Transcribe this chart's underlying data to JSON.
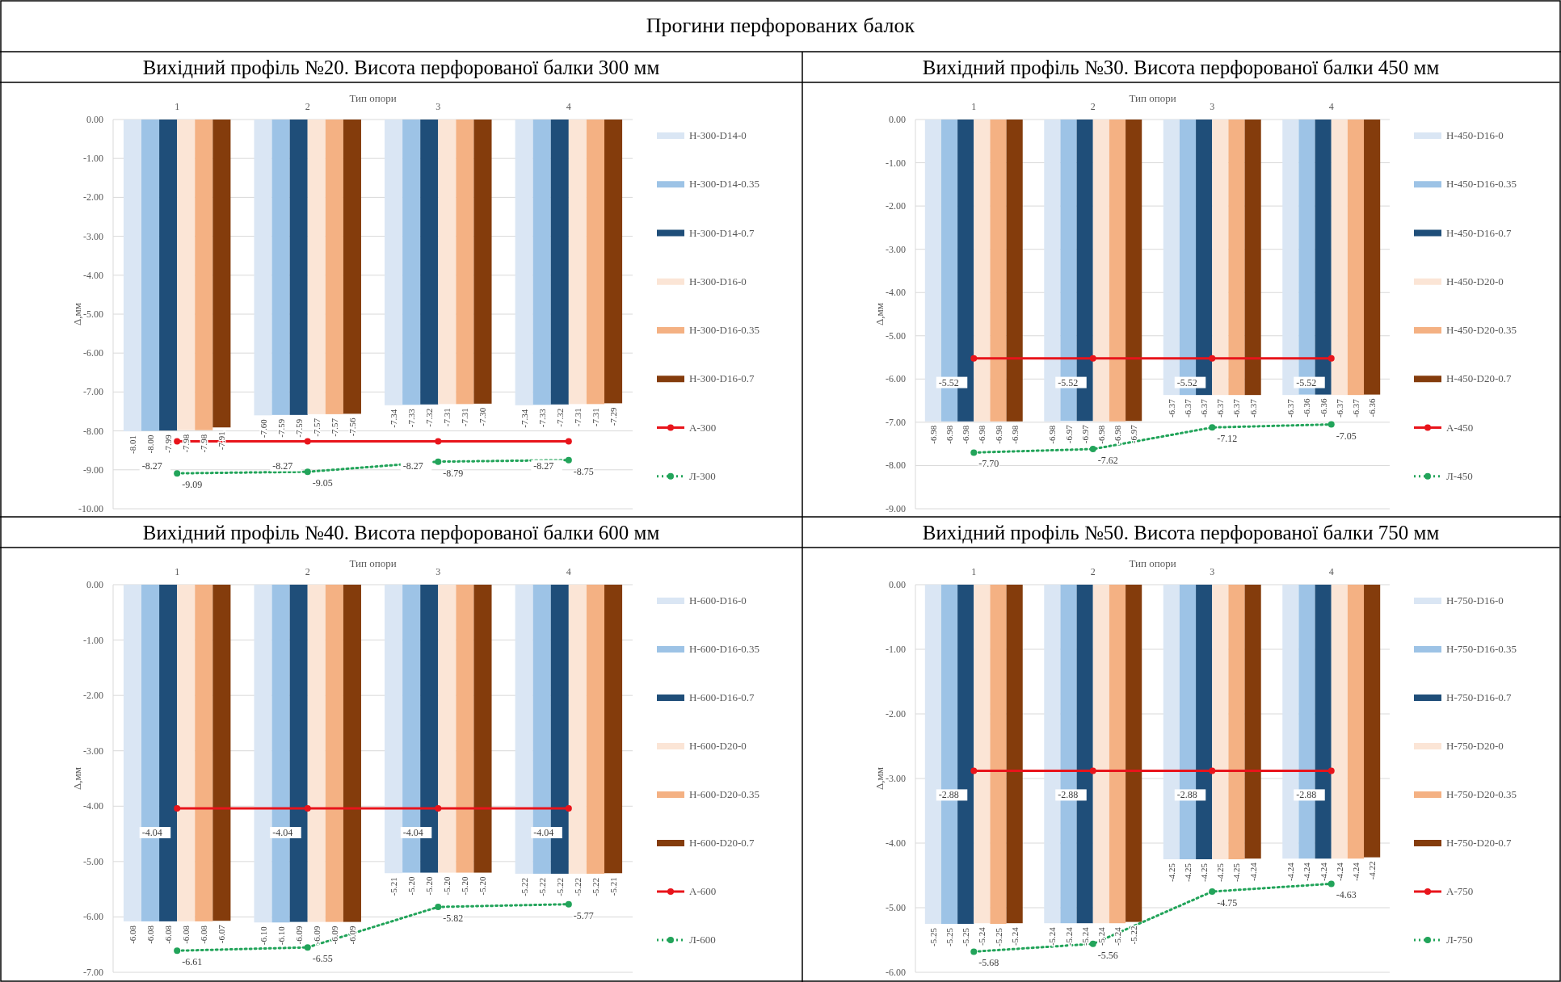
{
  "chart_data": [
    {
      "type": "bar",
      "title": "Вихідний профіль №20. Висота перфорованої балки 300 мм",
      "annotations": [
        "Прогини перфорованих балок"
      ],
      "xlabel": "Тип опори",
      "ylabel": "Δ,мм",
      "categories": [
        "1",
        "2",
        "3",
        "4"
      ],
      "ylim": [
        -10,
        0
      ],
      "yticks": [
        {
          "value": 0,
          "label": "0.00"
        },
        {
          "value": -1,
          "label": "-1.00"
        },
        {
          "value": -2,
          "label": "-2.00"
        },
        {
          "value": -3,
          "label": "-3.00"
        },
        {
          "value": -4,
          "label": "-4.00"
        },
        {
          "value": -5,
          "label": "-5.00"
        },
        {
          "value": -6,
          "label": "-6.00"
        },
        {
          "value": -7,
          "label": "-7.00"
        },
        {
          "value": -8,
          "label": "-8.00"
        },
        {
          "value": -9,
          "label": "-9.00"
        },
        {
          "value": -10,
          "label": "-10.00"
        }
      ],
      "grid": "y",
      "legend": "right",
      "series": [
        {
          "name": "Н-300-D14-0",
          "color": "#dae6f4",
          "values": [
            -8.01,
            -7.6,
            -7.34,
            -7.34
          ],
          "value_labels": [
            "-8.01",
            "-7.60",
            "-7.34",
            "-7.34"
          ]
        },
        {
          "name": "Н-300-D14-0.35",
          "color": "#9dc3e6",
          "values": [
            -8.0,
            -7.59,
            -7.33,
            -7.33
          ],
          "value_labels": [
            "-8.00",
            "-7.59",
            "-7.33",
            "-7.33"
          ]
        },
        {
          "name": "Н-300-D14-0.7",
          "color": "#1f4e79",
          "values": [
            -7.99,
            -7.59,
            -7.32,
            -7.32
          ],
          "value_labels": [
            "-7.99",
            "-7.59",
            "-7.32",
            "-7.32"
          ]
        },
        {
          "name": "Н-300-D16-0",
          "color": "#fbe5d6",
          "values": [
            -7.98,
            -7.57,
            -7.31,
            -7.31
          ],
          "value_labels": [
            "-7.98",
            "-7.57",
            "-7.31",
            "-7.31"
          ]
        },
        {
          "name": "Н-300-D16-0.35",
          "color": "#f4b183",
          "values": [
            -7.98,
            -7.57,
            -7.31,
            -7.31
          ],
          "value_labels": [
            "-7.98",
            "-7.57",
            "-7.31",
            "-7.31"
          ]
        },
        {
          "name": "Н-300-D16-0.7",
          "color": "#843c0c",
          "values": [
            -7.91,
            -7.56,
            -7.3,
            -7.29
          ],
          "value_labels": [
            "-7.91",
            "-7.56",
            "-7.30",
            "-7.29"
          ]
        },
        {
          "name": "А-300",
          "type": "line",
          "color": "#e8141b",
          "marker": "circle",
          "line_style": "solid",
          "values": [
            -8.27,
            -8.27,
            -8.27,
            -8.27
          ],
          "value_labels": [
            "-8.27",
            "-8.27",
            "-8.27",
            "-8.27"
          ]
        },
        {
          "name": "Л-300",
          "type": "line",
          "color": "#22a45a",
          "marker": "circle",
          "line_style": "dotted",
          "values": [
            -9.09,
            -9.05,
            -8.79,
            -8.75
          ],
          "value_labels": [
            "-9.09",
            "-9.05",
            "-8.79",
            "-8.75"
          ]
        }
      ]
    },
    {
      "type": "bar",
      "title": "Вихідний профіль №30. Висота перфорованої балки 450 мм",
      "xlabel": "Тип опори",
      "ylabel": "Δ,мм",
      "categories": [
        "1",
        "2",
        "3",
        "4"
      ],
      "ylim": [
        -9,
        0
      ],
      "yticks": [
        {
          "value": 0,
          "label": "0.00"
        },
        {
          "value": -1,
          "label": "-1.00"
        },
        {
          "value": -2,
          "label": "-2.00"
        },
        {
          "value": -3,
          "label": "-3.00"
        },
        {
          "value": -4,
          "label": "-4.00"
        },
        {
          "value": -5,
          "label": "-5.00"
        },
        {
          "value": -6,
          "label": "-6.00"
        },
        {
          "value": -7,
          "label": "-7.00"
        },
        {
          "value": -8,
          "label": "-8.00"
        },
        {
          "value": -9,
          "label": "-9.00"
        }
      ],
      "grid": "y",
      "legend": "right",
      "series": [
        {
          "name": "Н-450-D16-0",
          "color": "#dae6f4",
          "values": [
            -6.98,
            -6.98,
            -6.37,
            -6.37
          ],
          "value_labels": [
            "-6.98",
            "-6.98",
            "-6.37",
            "-6.37"
          ]
        },
        {
          "name": "Н-450-D16-0.35",
          "color": "#9dc3e6",
          "values": [
            -6.98,
            -6.97,
            -6.37,
            -6.36
          ],
          "value_labels": [
            "-6.98",
            "-6.97",
            "-6.37",
            "-6.36"
          ]
        },
        {
          "name": "Н-450-D16-0.7",
          "color": "#1f4e79",
          "values": [
            -6.98,
            -6.97,
            -6.37,
            -6.36
          ],
          "value_labels": [
            "-6.98",
            "-6.97",
            "-6.37",
            "-6.36"
          ]
        },
        {
          "name": "Н-450-D20-0",
          "color": "#fbe5d6",
          "values": [
            -6.98,
            -6.98,
            -6.37,
            -6.37
          ],
          "value_labels": [
            "-6.98",
            "-6.98",
            "-6.37",
            "-6.37"
          ]
        },
        {
          "name": "Н-450-D20-0.35",
          "color": "#f4b183",
          "values": [
            -6.98,
            -6.98,
            -6.37,
            -6.37
          ],
          "value_labels": [
            "-6.98",
            "-6.98",
            "-6.37",
            "-6.37"
          ]
        },
        {
          "name": "Н-450-D20-0.7",
          "color": "#843c0c",
          "values": [
            -6.98,
            -6.97,
            -6.37,
            -6.36
          ],
          "value_labels": [
            "-6.98",
            "-6.97",
            "-6.37",
            "-6.36"
          ]
        },
        {
          "name": "А-450",
          "type": "line",
          "color": "#e8141b",
          "marker": "circle",
          "line_style": "solid",
          "values": [
            -5.52,
            -5.52,
            -5.52,
            -5.52
          ],
          "value_labels": [
            "-5.52",
            "-5.52",
            "-5.52",
            "-5.52"
          ]
        },
        {
          "name": "Л-450",
          "type": "line",
          "color": "#22a45a",
          "marker": "circle",
          "line_style": "dotted",
          "values": [
            -7.7,
            -7.62,
            -7.12,
            -7.05
          ],
          "value_labels": [
            "-7.70",
            "-7.62",
            "-7.12",
            "-7.05"
          ]
        }
      ]
    },
    {
      "type": "bar",
      "title": "Вихідний профіль №40. Висота перфорованої балки 600 мм",
      "xlabel": "Тип опори",
      "ylabel": "Δ,мм",
      "categories": [
        "1",
        "2",
        "3",
        "4"
      ],
      "ylim": [
        -7,
        0
      ],
      "yticks": [
        {
          "value": 0,
          "label": "0.00"
        },
        {
          "value": -1,
          "label": "-1.00"
        },
        {
          "value": -2,
          "label": "-2.00"
        },
        {
          "value": -3,
          "label": "-3.00"
        },
        {
          "value": -4,
          "label": "-4.00"
        },
        {
          "value": -5,
          "label": "-5.00"
        },
        {
          "value": -6,
          "label": "-6.00"
        },
        {
          "value": -7,
          "label": "-7.00"
        }
      ],
      "grid": "y",
      "legend": "right",
      "series": [
        {
          "name": "Н-600-D16-0",
          "color": "#dae6f4",
          "values": [
            -6.08,
            -6.1,
            -5.21,
            -5.22
          ],
          "value_labels": [
            "-6.08",
            "-6.10",
            "-5.21",
            "-5.22"
          ]
        },
        {
          "name": "Н-600-D16-0.35",
          "color": "#9dc3e6",
          "values": [
            -6.08,
            -6.1,
            -5.2,
            -5.22
          ],
          "value_labels": [
            "-6.08",
            "-6.10",
            "-5.20",
            "-5.22"
          ]
        },
        {
          "name": "Н-600-D16-0.7",
          "color": "#1f4e79",
          "values": [
            -6.08,
            -6.09,
            -5.2,
            -5.22
          ],
          "value_labels": [
            "-6.08",
            "-6.09",
            "-5.20",
            "-5.22"
          ]
        },
        {
          "name": "Н-600-D20-0",
          "color": "#fbe5d6",
          "values": [
            -6.08,
            -6.09,
            -5.2,
            -5.22
          ],
          "value_labels": [
            "-6.08",
            "-6.09",
            "-5.20",
            "-5.22"
          ]
        },
        {
          "name": "Н-600-D20-0.35",
          "color": "#f4b183",
          "values": [
            -6.08,
            -6.09,
            -5.2,
            -5.22
          ],
          "value_labels": [
            "-6.08",
            "-6.09",
            "-5.20",
            "-5.22"
          ]
        },
        {
          "name": "Н-600-D20-0.7",
          "color": "#843c0c",
          "values": [
            -6.07,
            -6.09,
            -5.2,
            -5.21
          ],
          "value_labels": [
            "-6.07",
            "-6.09",
            "-5.20",
            "-5.21"
          ]
        },
        {
          "name": "А-600",
          "type": "line",
          "color": "#e8141b",
          "marker": "circle",
          "line_style": "solid",
          "values": [
            -4.04,
            -4.04,
            -4.04,
            -4.04
          ],
          "value_labels": [
            "-4.04",
            "-4.04",
            "-4.04",
            "-4.04"
          ]
        },
        {
          "name": "Л-600",
          "type": "line",
          "color": "#22a45a",
          "marker": "circle",
          "line_style": "dotted",
          "values": [
            -6.61,
            -6.55,
            -5.82,
            -5.77
          ],
          "value_labels": [
            "-6.61",
            "-6.55",
            "-5.82",
            "-5.77"
          ]
        }
      ]
    },
    {
      "type": "bar",
      "title": "Вихідний профіль №50. Висота перфорованої балки 750 мм",
      "xlabel": "Тип опори",
      "ylabel": "Δ,мм",
      "categories": [
        "1",
        "2",
        "3",
        "4"
      ],
      "ylim": [
        -6,
        0
      ],
      "yticks": [
        {
          "value": 0,
          "label": "0.00"
        },
        {
          "value": -1,
          "label": "-1.00"
        },
        {
          "value": -2,
          "label": "-2.00"
        },
        {
          "value": -3,
          "label": "-3.00"
        },
        {
          "value": -4,
          "label": "-4.00"
        },
        {
          "value": -5,
          "label": "-5.00"
        },
        {
          "value": -6,
          "label": "-6.00"
        }
      ],
      "grid": "y",
      "legend": "right",
      "series": [
        {
          "name": "Н-750-D16-0",
          "color": "#dae6f4",
          "values": [
            -5.25,
            -5.24,
            -4.25,
            -4.24
          ],
          "value_labels": [
            "-5.25",
            "-5.24",
            "-4.25",
            "-4.24"
          ]
        },
        {
          "name": "Н-750-D16-0.35",
          "color": "#9dc3e6",
          "values": [
            -5.25,
            -5.24,
            -4.25,
            -4.24
          ],
          "value_labels": [
            "-5.25",
            "-5.24",
            "-4.25",
            "-4.24"
          ]
        },
        {
          "name": "Н-750-D16-0.7",
          "color": "#1f4e79",
          "values": [
            -5.25,
            -5.24,
            -4.25,
            -4.24
          ],
          "value_labels": [
            "-5.25",
            "-5.24",
            "-4.25",
            "-4.24"
          ]
        },
        {
          "name": "Н-750-D20-0",
          "color": "#fbe5d6",
          "values": [
            -5.24,
            -5.24,
            -4.25,
            -4.24
          ],
          "value_labels": [
            "-5.24",
            "-5.24",
            "-4.25",
            "-4.24"
          ]
        },
        {
          "name": "Н-750-D20-0.35",
          "color": "#f4b183",
          "values": [
            -5.25,
            -5.24,
            -4.25,
            -4.24
          ],
          "value_labels": [
            "-5.25",
            "-5.24",
            "-4.25",
            "-4.24"
          ]
        },
        {
          "name": "Н-750-D20-0.7",
          "color": "#843c0c",
          "values": [
            -5.24,
            -5.22,
            -4.24,
            -4.22
          ],
          "value_labels": [
            "-5.24",
            "-5.22",
            "-4.24",
            "-4.22"
          ]
        },
        {
          "name": "А-750",
          "type": "line",
          "color": "#e8141b",
          "marker": "circle",
          "line_style": "solid",
          "values": [
            -2.88,
            -2.88,
            -2.88,
            -2.88
          ],
          "value_labels": [
            "-2.88",
            "-2.88",
            "-2.88",
            "-2.88"
          ]
        },
        {
          "name": "Л-750",
          "type": "line",
          "color": "#22a45a",
          "marker": "circle",
          "line_style": "dotted",
          "values": [
            -5.68,
            -5.56,
            -4.75,
            -4.63
          ],
          "value_labels": [
            "-5.68",
            "-5.56",
            "-4.75",
            "-4.63"
          ]
        }
      ]
    }
  ]
}
